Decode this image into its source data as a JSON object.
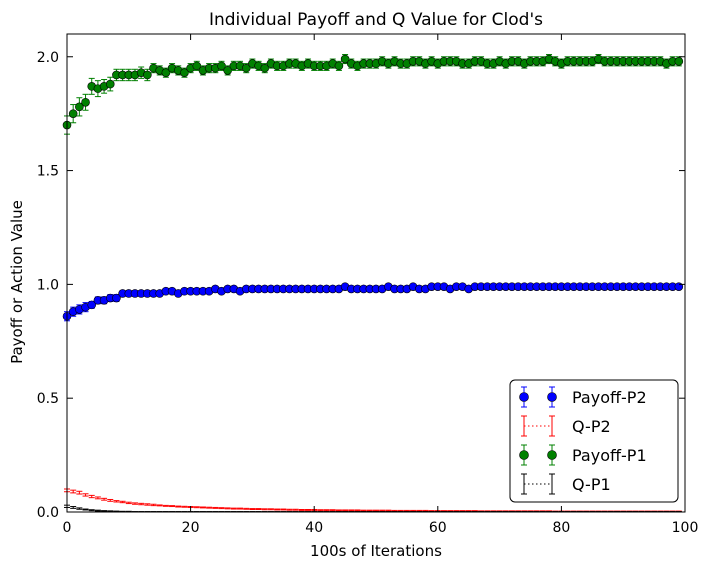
{
  "chart_data": {
    "type": "scatter",
    "title": "Individual Payoff and Q Value for Clod's",
    "xlabel": "100s of Iterations",
    "ylabel": "Payoff or Action Value",
    "xlim": [
      0,
      100
    ],
    "ylim": [
      0.0,
      2.1
    ],
    "xticks": [
      "0",
      "20",
      "40",
      "60",
      "80",
      "100"
    ],
    "yticks": [
      "0.0",
      "0.5",
      "1.0",
      "1.5",
      "2.0"
    ],
    "grid": false,
    "legend_position": "lower-right",
    "legend": [
      "Payoff-P2",
      "Q-P2",
      "Payoff-P1",
      "Q-P1"
    ],
    "series": [
      {
        "name": "Payoff-P2",
        "color": "#0000ff",
        "marker": "circle",
        "y": [
          0.86,
          0.88,
          0.89,
          0.9,
          0.91,
          0.93,
          0.93,
          0.94,
          0.94,
          0.96,
          0.96,
          0.96,
          0.96,
          0.96,
          0.96,
          0.96,
          0.97,
          0.97,
          0.96,
          0.97,
          0.97,
          0.97,
          0.97,
          0.97,
          0.98,
          0.97,
          0.98,
          0.98,
          0.97,
          0.98,
          0.98,
          0.98,
          0.98,
          0.98,
          0.98,
          0.98,
          0.98,
          0.98,
          0.98,
          0.98,
          0.98,
          0.98,
          0.98,
          0.98,
          0.98,
          0.99,
          0.98,
          0.98,
          0.98,
          0.98,
          0.98,
          0.98,
          0.99,
          0.98,
          0.98,
          0.98,
          0.99,
          0.98,
          0.98,
          0.99,
          0.99,
          0.99,
          0.98,
          0.99,
          0.99,
          0.98,
          0.99,
          0.99,
          0.99,
          0.99,
          0.99,
          0.99,
          0.99,
          0.99,
          0.99,
          0.99,
          0.99,
          0.99,
          0.99,
          0.99,
          0.99,
          0.99,
          0.99,
          0.99,
          0.99,
          0.99,
          0.99,
          0.99,
          0.99,
          0.99,
          0.99,
          0.99,
          0.99,
          0.99,
          0.99,
          0.99,
          0.99,
          0.99,
          0.99,
          0.99
        ],
        "err": [
          0.02,
          0.02,
          0.02,
          0.02,
          0.015,
          0.015,
          0.015,
          0.015,
          0.015,
          0.012,
          0.012,
          0.012,
          0.012,
          0.012,
          0.012,
          0.01,
          0.01,
          0.01,
          0.01,
          0.01,
          0.01,
          0.01,
          0.01,
          0.01,
          0.01,
          0.01,
          0.01,
          0.01,
          0.01,
          0.01,
          0.01,
          0.01,
          0.01,
          0.01,
          0.01,
          0.01,
          0.01,
          0.01,
          0.01,
          0.01,
          0.01,
          0.01,
          0.01,
          0.01,
          0.01,
          0.01,
          0.01,
          0.01,
          0.01,
          0.01,
          0.01,
          0.01,
          0.01,
          0.01,
          0.01,
          0.01,
          0.01,
          0.01,
          0.01,
          0.01,
          0.01,
          0.01,
          0.01,
          0.01,
          0.01,
          0.01,
          0.01,
          0.01,
          0.01,
          0.01,
          0.01,
          0.01,
          0.01,
          0.01,
          0.01,
          0.01,
          0.01,
          0.01,
          0.01,
          0.01,
          0.01,
          0.01,
          0.01,
          0.01,
          0.01,
          0.01,
          0.01,
          0.01,
          0.01,
          0.01,
          0.01,
          0.01,
          0.01,
          0.01,
          0.01,
          0.01,
          0.01,
          0.01,
          0.01,
          0.01
        ]
      },
      {
        "name": "Q-P2",
        "color": "#ff0000",
        "marker": "none",
        "y": [
          0.095,
          0.09,
          0.085,
          0.075,
          0.068,
          0.062,
          0.056,
          0.051,
          0.047,
          0.044,
          0.04,
          0.037,
          0.035,
          0.033,
          0.031,
          0.029,
          0.027,
          0.026,
          0.024,
          0.023,
          0.022,
          0.021,
          0.02,
          0.019,
          0.018,
          0.017,
          0.016,
          0.015,
          0.015,
          0.014,
          0.013,
          0.013,
          0.012,
          0.012,
          0.011,
          0.011,
          0.01,
          0.01,
          0.009,
          0.009,
          0.009,
          0.008,
          0.008,
          0.008,
          0.007,
          0.007,
          0.007,
          0.007,
          0.006,
          0.006,
          0.006,
          0.006,
          0.006,
          0.005,
          0.005,
          0.005,
          0.005,
          0.005,
          0.005,
          0.004,
          0.004,
          0.004,
          0.004,
          0.004,
          0.004,
          0.004,
          0.004,
          0.003,
          0.003,
          0.003,
          0.003,
          0.003,
          0.003,
          0.003,
          0.003,
          0.003,
          0.003,
          0.003,
          0.003,
          0.002,
          0.002,
          0.002,
          0.002,
          0.002,
          0.002,
          0.002,
          0.002,
          0.002,
          0.002,
          0.002,
          0.002,
          0.002,
          0.002,
          0.002,
          0.002,
          0.002,
          0.002,
          0.002,
          0.002,
          0.002
        ],
        "err": [
          0.006,
          0.006,
          0.006,
          0.005,
          0.005,
          0.004,
          0.004,
          0.004,
          0.003,
          0.003,
          0.003,
          0.003,
          0.003,
          0.003,
          0.003,
          0.002,
          0.002,
          0.002,
          0.002,
          0.002,
          0.002,
          0.002,
          0.002,
          0.002,
          0.002,
          0.002,
          0.002,
          0.002,
          0.002,
          0.002,
          0.002,
          0.002,
          0.002,
          0.002,
          0.002,
          0.002,
          0.002,
          0.002,
          0.002,
          0.002,
          0.002,
          0.002,
          0.002,
          0.002,
          0.002,
          0.002,
          0.002,
          0.002,
          0.002,
          0.002,
          0.002,
          0.002,
          0.002,
          0.002,
          0.002,
          0.002,
          0.002,
          0.002,
          0.002,
          0.002,
          0.002,
          0.002,
          0.002,
          0.002,
          0.002,
          0.002,
          0.002,
          0.002,
          0.002,
          0.002,
          0.002,
          0.002,
          0.002,
          0.002,
          0.002,
          0.002,
          0.002,
          0.002,
          0.002,
          0.002,
          0.002,
          0.002,
          0.002,
          0.002,
          0.002,
          0.002,
          0.002,
          0.002,
          0.002,
          0.002,
          0.002,
          0.002,
          0.002,
          0.002,
          0.002,
          0.002,
          0.002,
          0.002,
          0.002,
          0.002
        ]
      },
      {
        "name": "Payoff-P1",
        "color": "#008000",
        "marker": "circle",
        "y": [
          1.7,
          1.75,
          1.78,
          1.8,
          1.87,
          1.86,
          1.87,
          1.88,
          1.92,
          1.92,
          1.92,
          1.92,
          1.93,
          1.92,
          1.95,
          1.94,
          1.93,
          1.95,
          1.94,
          1.93,
          1.95,
          1.96,
          1.94,
          1.95,
          1.95,
          1.96,
          1.94,
          1.96,
          1.96,
          1.95,
          1.97,
          1.96,
          1.95,
          1.97,
          1.96,
          1.96,
          1.97,
          1.97,
          1.96,
          1.97,
          1.96,
          1.96,
          1.96,
          1.97,
          1.96,
          1.99,
          1.97,
          1.96,
          1.97,
          1.97,
          1.97,
          1.98,
          1.97,
          1.98,
          1.97,
          1.97,
          1.98,
          1.98,
          1.97,
          1.98,
          1.97,
          1.98,
          1.98,
          1.98,
          1.97,
          1.97,
          1.98,
          1.98,
          1.97,
          1.97,
          1.98,
          1.97,
          1.98,
          1.98,
          1.97,
          1.98,
          1.98,
          1.98,
          1.99,
          1.98,
          1.97,
          1.98,
          1.98,
          1.98,
          1.98,
          1.98,
          1.99,
          1.98,
          1.98,
          1.98,
          1.98,
          1.98,
          1.98,
          1.98,
          1.98,
          1.98,
          1.98,
          1.97,
          1.98,
          1.98
        ],
        "err": [
          0.04,
          0.04,
          0.04,
          0.035,
          0.035,
          0.035,
          0.03,
          0.03,
          0.025,
          0.025,
          0.025,
          0.025,
          0.025,
          0.025,
          0.02,
          0.02,
          0.02,
          0.02,
          0.02,
          0.02,
          0.02,
          0.02,
          0.02,
          0.02,
          0.02,
          0.02,
          0.02,
          0.02,
          0.02,
          0.02,
          0.02,
          0.02,
          0.02,
          0.02,
          0.02,
          0.02,
          0.02,
          0.02,
          0.02,
          0.02,
          0.02,
          0.02,
          0.02,
          0.02,
          0.02,
          0.02,
          0.02,
          0.02,
          0.02,
          0.02,
          0.02,
          0.02,
          0.02,
          0.02,
          0.02,
          0.02,
          0.02,
          0.02,
          0.02,
          0.02,
          0.02,
          0.02,
          0.02,
          0.02,
          0.02,
          0.02,
          0.02,
          0.02,
          0.02,
          0.02,
          0.02,
          0.02,
          0.02,
          0.02,
          0.02,
          0.02,
          0.02,
          0.02,
          0.02,
          0.02,
          0.02,
          0.02,
          0.02,
          0.02,
          0.02,
          0.02,
          0.02,
          0.02,
          0.02,
          0.02,
          0.02,
          0.02,
          0.02,
          0.02,
          0.02,
          0.02,
          0.02,
          0.02,
          0.02,
          0.02
        ]
      },
      {
        "name": "Q-P1",
        "color": "#000000",
        "marker": "none",
        "y": [
          0.025,
          0.02,
          0.015,
          0.011,
          0.008,
          0.006,
          0.005,
          0.004,
          0.003,
          0.002,
          0.002,
          0.001,
          0.001,
          0.001,
          0.001,
          0.001,
          0.001,
          0.001,
          0.001,
          0.001,
          0.001,
          0.001,
          0.001,
          0.001,
          0.001,
          0.001,
          0.001,
          0.001,
          0.001,
          0.001,
          0.001,
          0.001,
          0.001,
          0.001,
          0.001,
          0.001,
          0.001,
          0.001,
          0.001,
          0.001,
          0.001,
          0.001,
          0.001,
          0.001,
          0.001,
          0.001,
          0.001,
          0.001,
          0.001,
          0.001,
          0.001,
          0.001,
          0.001,
          0.001,
          0.001,
          0.001,
          0.001,
          0.001,
          0.001,
          0.001,
          0.001,
          0.001,
          0.001,
          0.001,
          0.001,
          0.001,
          0.001,
          0.001,
          0.001,
          0.001,
          0.001,
          0.001,
          0.001,
          0.001,
          0.001,
          0.001,
          0.001,
          0.001,
          0.001,
          0.001,
          0.001,
          0.001,
          0.001,
          0.001,
          0.001,
          0.001,
          0.001,
          0.001,
          0.001,
          0.001,
          0.001,
          0.001,
          0.001,
          0.001,
          0.001,
          0.001,
          0.001,
          0.001,
          0.001,
          0.001
        ],
        "err": [
          0.005,
          0.004,
          0.003,
          0.002,
          0.002,
          0.002,
          0.001,
          0.001,
          0.001,
          0.001,
          0.001,
          0.001,
          0.001,
          0.001,
          0.001,
          0.001,
          0.001,
          0.001,
          0.001,
          0.001,
          0.001,
          0.001,
          0.001,
          0.001,
          0.001,
          0.001,
          0.001,
          0.001,
          0.001,
          0.001,
          0.001,
          0.001,
          0.001,
          0.001,
          0.001,
          0.001,
          0.001,
          0.001,
          0.001,
          0.001,
          0.001,
          0.001,
          0.001,
          0.001,
          0.001,
          0.001,
          0.001,
          0.001,
          0.001,
          0.001,
          0.001,
          0.001,
          0.001,
          0.001,
          0.001,
          0.001,
          0.001,
          0.001,
          0.001,
          0.001,
          0.001,
          0.001,
          0.001,
          0.001,
          0.001,
          0.001,
          0.001,
          0.001,
          0.001,
          0.001,
          0.001,
          0.001,
          0.001,
          0.001,
          0.001,
          0.001,
          0.001,
          0.001,
          0.001,
          0.001,
          0.001,
          0.001,
          0.001,
          0.001,
          0.001,
          0.001,
          0.001,
          0.001,
          0.001,
          0.001,
          0.001,
          0.001,
          0.001,
          0.001,
          0.001,
          0.001,
          0.001,
          0.001,
          0.001,
          0.001
        ]
      }
    ]
  }
}
